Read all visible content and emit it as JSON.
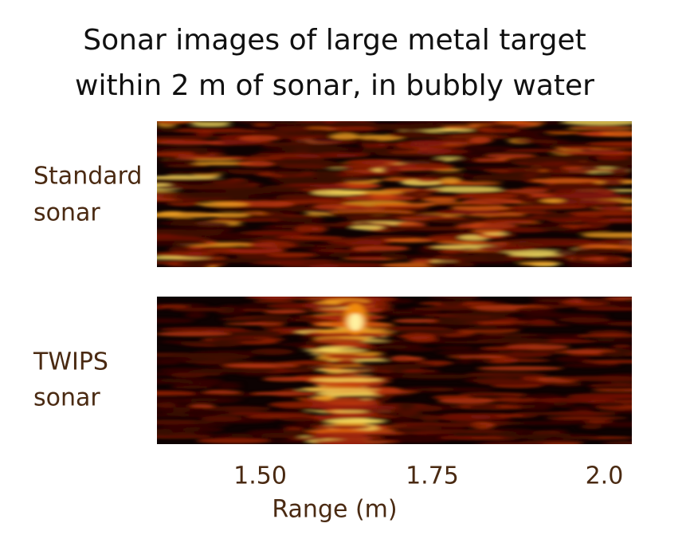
{
  "chart_data": {
    "type": "image-panels",
    "title": [
      "Sonar images of large metal target",
      "within 2 m of sonar, in bubbly water"
    ],
    "panels": [
      {
        "label": [
          "Standard",
          "sonar"
        ]
      },
      {
        "label": [
          "TWIPS",
          "sonar"
        ]
      }
    ],
    "xlabel": "Range (m)",
    "xlim": [
      1.35,
      2.04
    ],
    "xticks": [
      {
        "value": 1.5,
        "label": "1.50"
      },
      1.75,
      {
        "value": 2,
        "label": "2.0"
      }
    ]
  }
}
